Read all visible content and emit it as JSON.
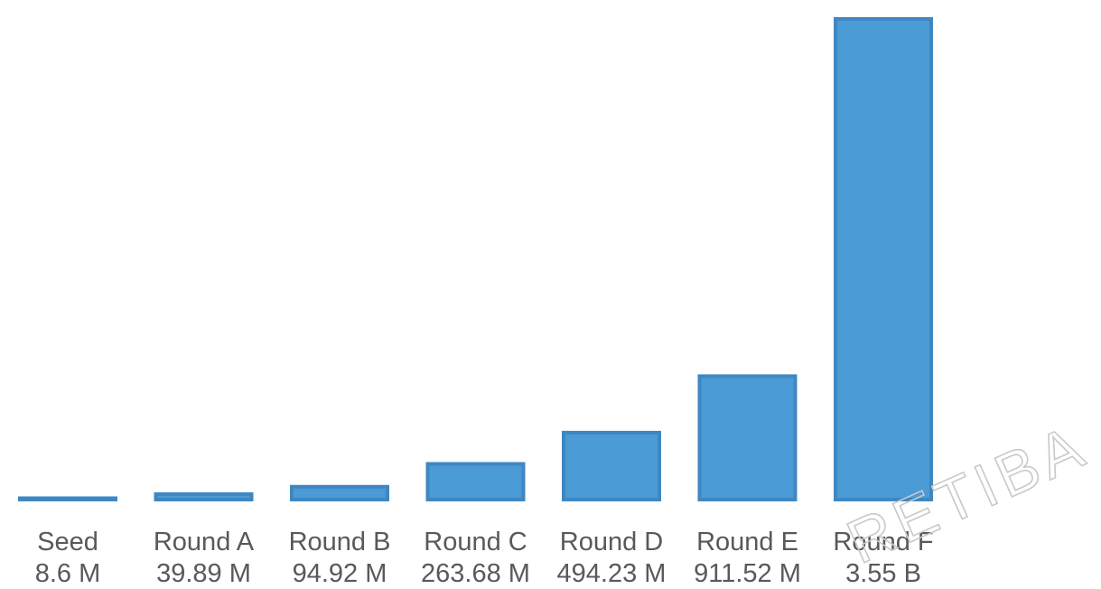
{
  "chart_data": {
    "type": "bar",
    "categories": [
      "Seed",
      "Round A",
      "Round B",
      "Round C",
      "Round D",
      "Round E",
      "Round F"
    ],
    "values": [
      8600000,
      39890000,
      94920000,
      263680000,
      494230000,
      911520000,
      3550000000
    ],
    "value_labels": [
      "8.6 M",
      "39.89 M",
      "94.92 M",
      "263.68 M",
      "494.23 M",
      "911.52 M",
      "3.55 B"
    ],
    "title": "",
    "xlabel": "",
    "ylabel": "",
    "ylim": [
      0,
      3550000000
    ],
    "grid": false,
    "legend": "none",
    "colors": {
      "bar_fill": "#4a9bd6",
      "bar_stroke": "#3f87c2",
      "label_text": "#595959",
      "watermark": "#c9c9c9"
    }
  },
  "watermark": {
    "text": "RETIBA"
  }
}
